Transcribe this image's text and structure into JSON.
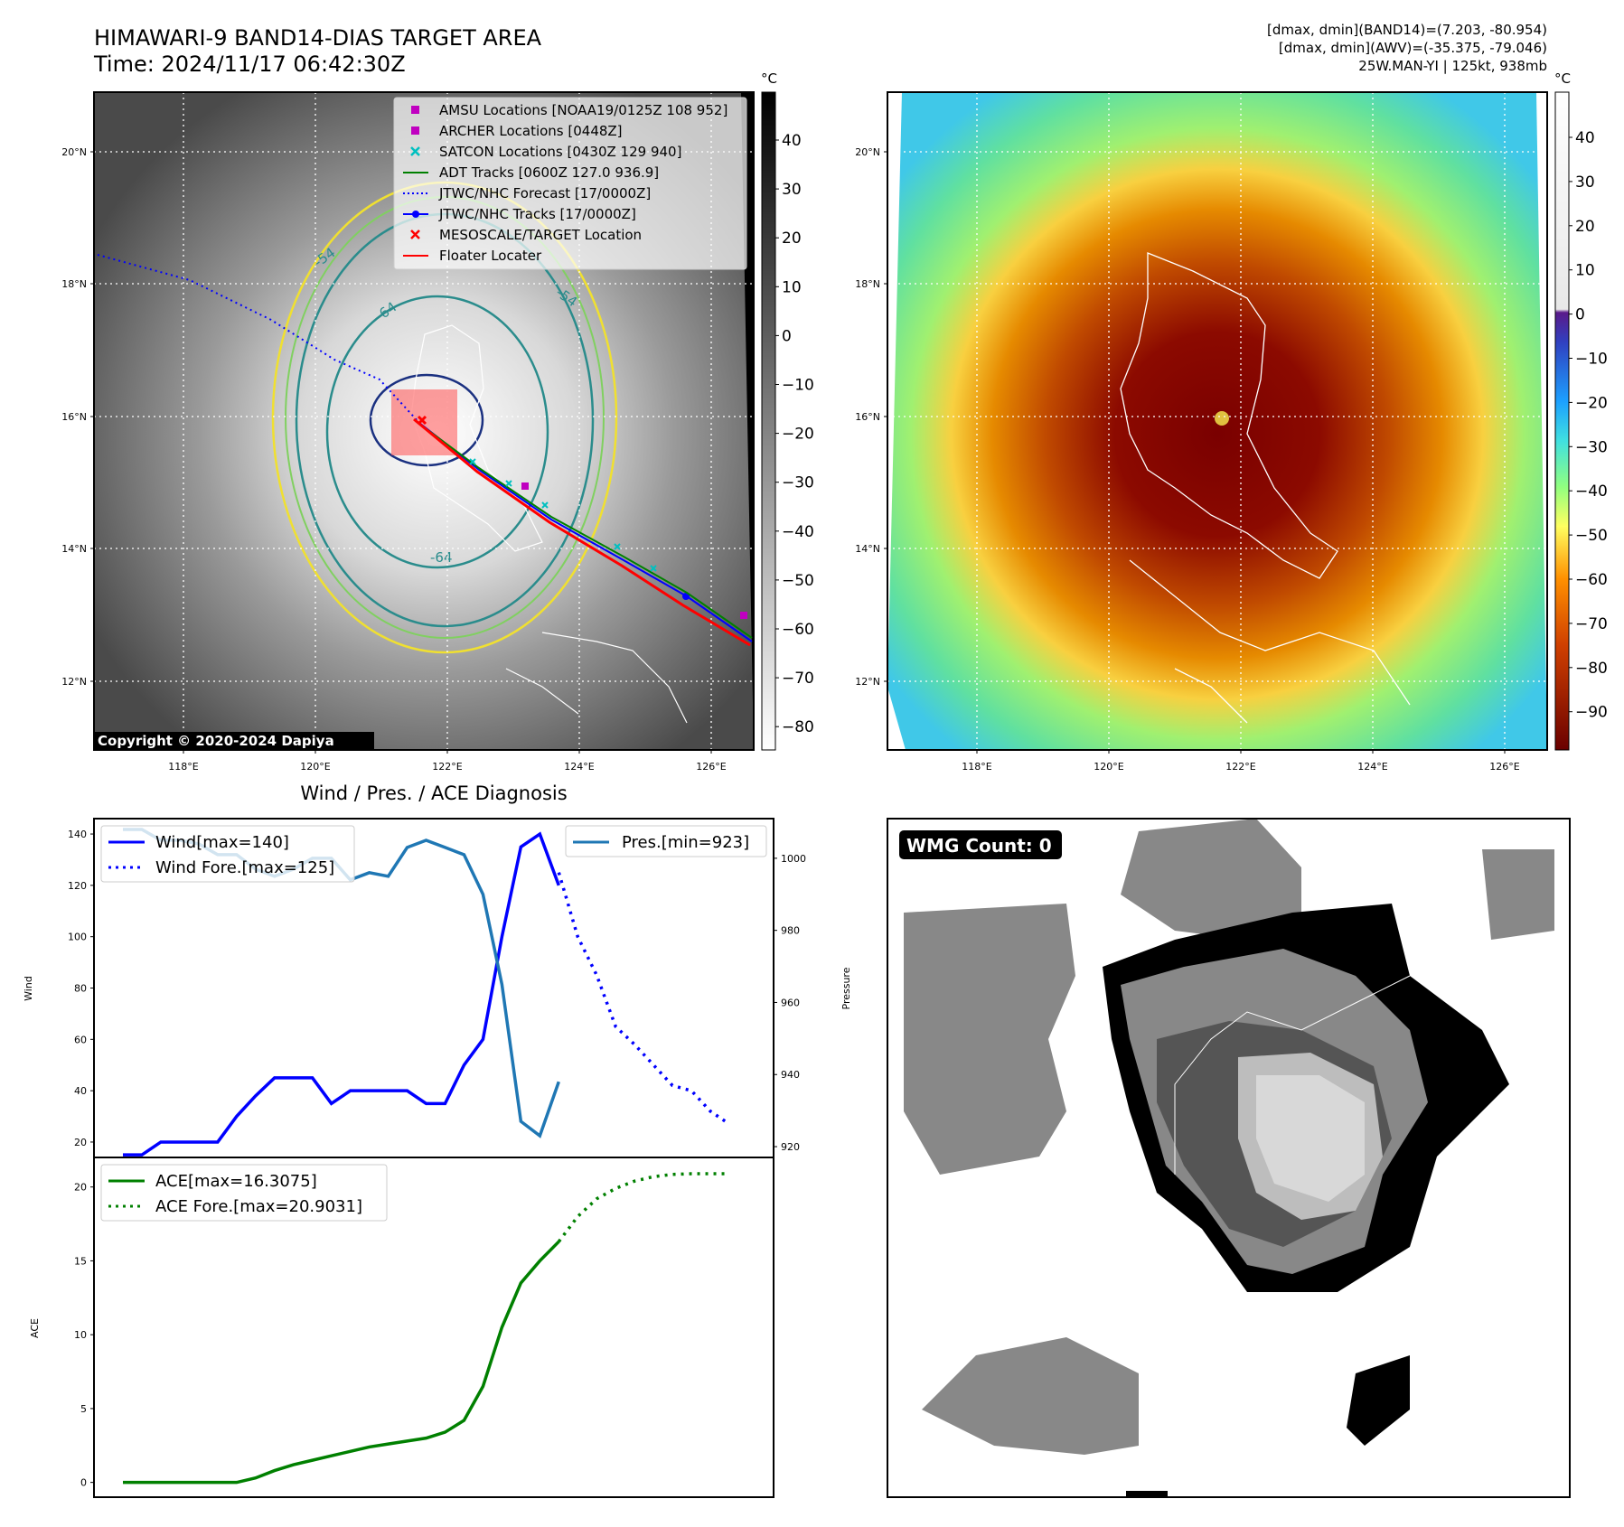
{
  "header": {
    "title_line1": "HIMAWARI-9 BAND14-DIAS TARGET AREA",
    "title_line2": "Time: 2024/11/17 06:42:30Z",
    "stats_line1": "[dmax, dmin](BAND14)=(7.203, -80.954)",
    "stats_line2": "[dmax, dmin](AWV)=(-35.375, -79.046)",
    "stats_line3": "25W.MAN-YI | 125kt, 938mb"
  },
  "map_left": {
    "lat_ticks": [
      "20°N",
      "18°N",
      "16°N",
      "14°N",
      "12°N"
    ],
    "lon_ticks": [
      "118°E",
      "120°E",
      "122°E",
      "124°E",
      "126°E"
    ],
    "contour_labels": [
      "-54",
      "-64",
      "-64",
      "-54"
    ],
    "copyright": "Copyright © 2020-2024 Dapiya",
    "legend": [
      {
        "label": "AMSU Locations [NOAA19/0125Z 108 952]",
        "marker": "square",
        "color": "#c000c0"
      },
      {
        "label": "ARCHER Locations [0448Z]",
        "marker": "square",
        "color": "#c000c0"
      },
      {
        "label": "SATCON Locations [0430Z 129 940]",
        "marker": "x",
        "color": "#00c0c0"
      },
      {
        "label": "ADT Tracks [0600Z 127.0 936.9]",
        "marker": "line",
        "color": "#008000"
      },
      {
        "label": "JTWC/NHC Forecast [17/0000Z]",
        "marker": "dotted",
        "color": "#0000ff"
      },
      {
        "label": "JTWC/NHC Tracks [17/0000Z]",
        "marker": "line-dot",
        "color": "#0000ff"
      },
      {
        "label": "MESOSCALE/TARGET Location",
        "marker": "x",
        "color": "#ff0000"
      },
      {
        "label": "Floater Locater",
        "marker": "line",
        "color": "#ff0000"
      }
    ],
    "colorbar": {
      "unit": "°C",
      "ticks": [
        "40",
        "30",
        "20",
        "10",
        "0",
        "−10",
        "−20",
        "−30",
        "−40",
        "−50",
        "−60",
        "−70",
        "−80"
      ]
    }
  },
  "map_right": {
    "lat_ticks": [
      "20°N",
      "18°N",
      "16°N",
      "14°N",
      "12°N"
    ],
    "lon_ticks": [
      "118°E",
      "120°E",
      "122°E",
      "124°E",
      "126°E"
    ],
    "colorbar": {
      "unit": "°C",
      "ticks": [
        "40",
        "30",
        "20",
        "10",
        "0",
        "−10",
        "−20",
        "−30",
        "−40",
        "−50",
        "−60",
        "−70",
        "−80",
        "−90"
      ]
    }
  },
  "diag_title": "Wind / Pres. / ACE Diagnosis",
  "wmg_label": "WMG Count: 0",
  "chart_data": [
    {
      "type": "line",
      "title": "Wind / Pres. / ACE Diagnosis",
      "ylabel": "Wind",
      "ylabel_right": "Pressure",
      "ylim": [
        14,
        146
      ],
      "ylim_right": [
        917,
        1011
      ],
      "yticks": [
        20,
        40,
        60,
        80,
        100,
        120,
        140
      ],
      "yticks_right": [
        920,
        940,
        960,
        980,
        1000
      ],
      "legend_left": [
        "Wind[max=140]",
        "Wind Fore.[max=125]"
      ],
      "legend_right": [
        "Pres.[min=923]"
      ],
      "series": [
        {
          "name": "Wind",
          "axis": "left",
          "color": "#0000ff",
          "style": "solid",
          "x": [
            0,
            1,
            2,
            3,
            4,
            5,
            6,
            7,
            8,
            9,
            10,
            11,
            12,
            13,
            14,
            15,
            16,
            17,
            18,
            19,
            20,
            21,
            22,
            23
          ],
          "values": [
            15,
            15,
            20,
            20,
            20,
            20,
            30,
            38,
            45,
            45,
            45,
            35,
            40,
            40,
            40,
            40,
            35,
            35,
            50,
            60,
            100,
            135,
            140,
            120
          ]
        },
        {
          "name": "Wind Fore.",
          "axis": "left",
          "color": "#0000ff",
          "style": "dotted",
          "x": [
            23,
            24,
            25,
            26,
            27,
            28,
            29,
            30,
            31,
            32
          ],
          "values": [
            125,
            100,
            85,
            65,
            58,
            50,
            42,
            40,
            32,
            27
          ]
        },
        {
          "name": "Pres.",
          "axis": "right",
          "color": "#1f77b4",
          "style": "solid",
          "x": [
            0,
            1,
            2,
            3,
            4,
            5,
            6,
            7,
            8,
            9,
            10,
            11,
            12,
            13,
            14,
            15,
            16,
            17,
            18,
            19,
            20,
            21,
            22,
            23
          ],
          "values": [
            1008,
            1008,
            1005,
            1005,
            1004,
            1001,
            1001,
            997,
            995,
            997,
            1000,
            1000,
            994,
            996,
            995,
            1003,
            1005,
            1003,
            1001,
            990,
            965,
            927,
            923,
            938
          ]
        }
      ]
    },
    {
      "type": "line",
      "ylabel": "ACE",
      "ylim": [
        -1,
        22
      ],
      "yticks": [
        0,
        5,
        10,
        15,
        20
      ],
      "legend": [
        "ACE[max=16.3075]",
        "ACE Fore.[max=20.9031]"
      ],
      "series": [
        {
          "name": "ACE",
          "color": "#008000",
          "style": "solid",
          "x": [
            0,
            1,
            2,
            3,
            4,
            5,
            6,
            7,
            8,
            9,
            10,
            11,
            12,
            13,
            14,
            15,
            16,
            17,
            18,
            19,
            20,
            21,
            22,
            23
          ],
          "values": [
            0,
            0,
            0,
            0,
            0,
            0,
            0,
            0.3,
            0.8,
            1.2,
            1.5,
            1.8,
            2.1,
            2.4,
            2.6,
            2.8,
            3.0,
            3.4,
            4.2,
            6.5,
            10.5,
            13.5,
            15.0,
            16.3
          ]
        },
        {
          "name": "ACE Fore.",
          "color": "#008000",
          "style": "dotted",
          "x": [
            23,
            24,
            25,
            26,
            27,
            28,
            29,
            30,
            31,
            32
          ],
          "values": [
            16.3,
            18.0,
            19.2,
            19.9,
            20.4,
            20.7,
            20.85,
            20.9,
            20.9,
            20.9
          ]
        }
      ]
    }
  ]
}
